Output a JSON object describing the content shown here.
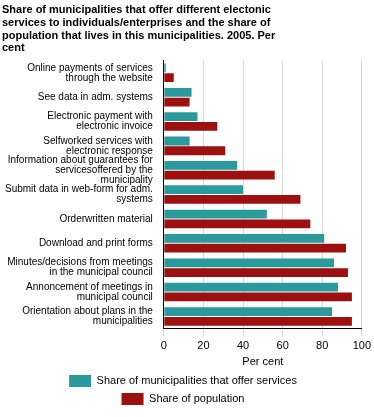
{
  "chart_data": {
    "type": "bar",
    "orientation": "horizontal",
    "title": "Share of municipalities that offer different electonic services to individuals/enterprises and the share of population that lives in this municipalities. 2005. Per cent",
    "x_label": "Per cent",
    "categories": [
      "Online payments of services through the website",
      "See data in adm. systems",
      "Electronic payment with electronic invoice",
      "Selfworked services with electronic response",
      "Information about guarantees for servicesoffered by the municipality",
      "Submit data in web-form for adm. systems",
      "Orderwritten material",
      "Download and print forms",
      "Minutes/decisions from meetings in the municipal council",
      "Annoncement of meetings in municipal council",
      "Orientation about plans in the municipalities"
    ],
    "series": [
      {
        "name": "Share of municipalities that offer services",
        "color": "#2a9a9c",
        "values": [
          1,
          14,
          17,
          13,
          37,
          40,
          52,
          81,
          86,
          88,
          85
        ]
      },
      {
        "name": "Share of population",
        "color": "#9c1010",
        "values": [
          5,
          13,
          27,
          31,
          56,
          69,
          74,
          92,
          93,
          95,
          95
        ]
      }
    ],
    "xlim": [
      0,
      100
    ],
    "xticks": [
      0,
      20,
      40,
      60,
      80,
      100
    ],
    "grid": true,
    "legend": "bottom"
  }
}
